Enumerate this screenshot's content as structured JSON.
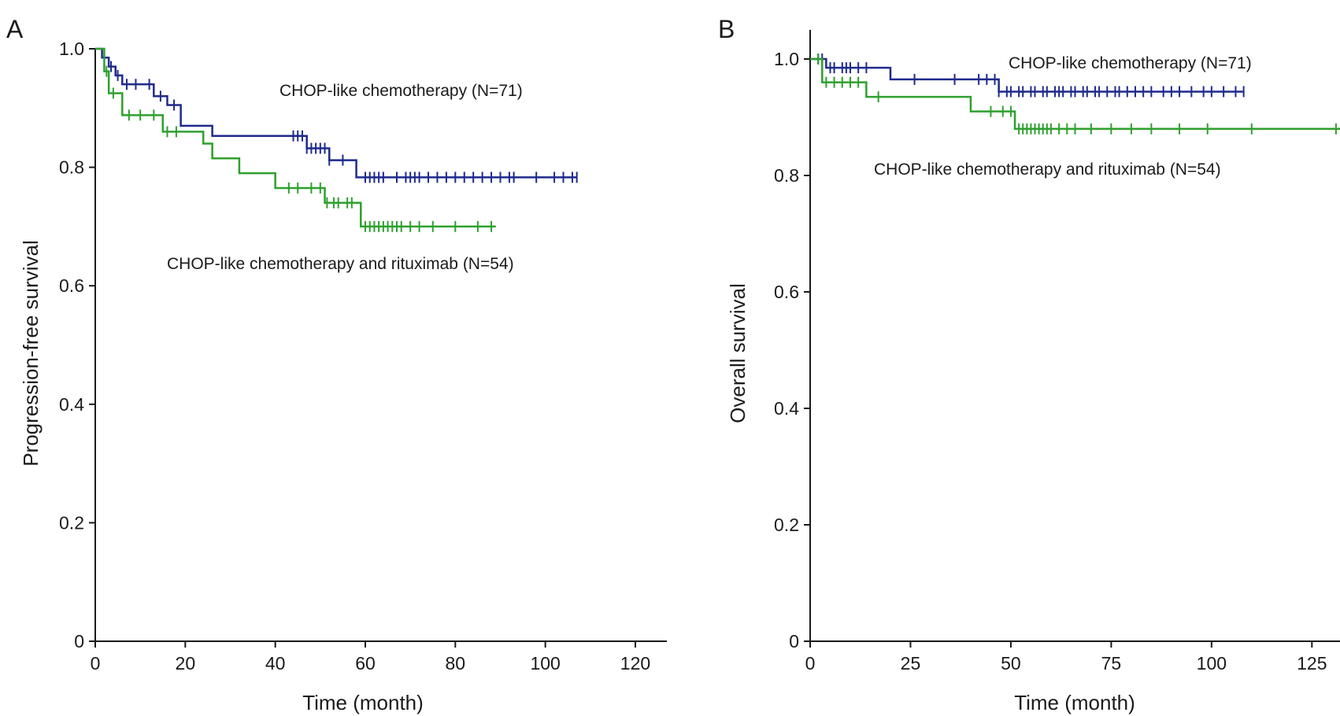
{
  "chart_data": [
    {
      "type": "line",
      "panel_label": "A",
      "xlabel": "Time (month)",
      "ylabel": "Progression-free survival",
      "xlim": [
        0,
        127
      ],
      "ylim": [
        0,
        1.0
      ],
      "xticks": [
        0,
        20,
        40,
        60,
        80,
        100,
        120
      ],
      "yticks": [
        0,
        0.2,
        0.4,
        0.6,
        0.8,
        1.0
      ],
      "ytick_labels": [
        "0",
        "0.2",
        "0.4",
        "0.6",
        "0.8",
        "1.0"
      ],
      "step": true,
      "series": [
        {
          "name": "CHOP-like chemotherapy (N=71)",
          "color": "#1f2a8c",
          "steps": [
            [
              0,
              1.0
            ],
            [
              1.5,
              0.985
            ],
            [
              3,
              0.97
            ],
            [
              4.5,
              0.955
            ],
            [
              6,
              0.94
            ],
            [
              11,
              0.94
            ],
            [
              13,
              0.92
            ],
            [
              16,
              0.905
            ],
            [
              19,
              0.87
            ],
            [
              26,
              0.853
            ],
            [
              47,
              0.832
            ],
            [
              52,
              0.812
            ],
            [
              58,
              0.783
            ],
            [
              107,
              0.783
            ]
          ],
          "censored": [
            2,
            3.5,
            5,
            7,
            9,
            12,
            14.5,
            17.5,
            44,
            45,
            46,
            47,
            48,
            49,
            50,
            51,
            52,
            55,
            60,
            61,
            62,
            63,
            64,
            67,
            69,
            70,
            71,
            72,
            74,
            76,
            78,
            80,
            82,
            84,
            86,
            88,
            90,
            92,
            93,
            98,
            102,
            104,
            106,
            107
          ]
        },
        {
          "name": "CHOP-like chemotherapy and rituximab (N=54)",
          "color": "#2ea02e",
          "steps": [
            [
              0,
              1.0
            ],
            [
              2,
              0.962
            ],
            [
              3,
              0.925
            ],
            [
              6,
              0.888
            ],
            [
              15,
              0.86
            ],
            [
              24,
              0.84
            ],
            [
              26,
              0.815
            ],
            [
              32,
              0.79
            ],
            [
              40,
              0.765
            ],
            [
              51,
              0.74
            ],
            [
              59,
              0.7
            ],
            [
              89,
              0.7
            ]
          ],
          "censored": [
            2.5,
            4,
            7.5,
            10,
            13,
            16,
            18,
            43,
            45,
            48,
            50,
            51.5,
            53,
            54,
            56,
            57,
            60,
            61,
            62,
            63,
            64,
            65,
            66,
            67,
            68,
            70,
            72,
            75,
            80,
            85,
            88
          ]
        }
      ]
    },
    {
      "type": "line",
      "panel_label": "B",
      "xlabel": "Time (month)",
      "ylabel": "Overall survival",
      "xlim": [
        0,
        132
      ],
      "ylim": [
        0,
        1.05
      ],
      "xticks": [
        0,
        25,
        50,
        75,
        100,
        125
      ],
      "yticks": [
        0,
        0.2,
        0.4,
        0.6,
        0.8,
        1.0
      ],
      "ytick_labels": [
        "0",
        "0.2",
        "0.4",
        "0.6",
        "0.8",
        "1.0"
      ],
      "step": true,
      "series": [
        {
          "name": "CHOP-like chemotherapy (N=71)",
          "color": "#1f2a8c",
          "steps": [
            [
              0,
              1.0
            ],
            [
              4,
              0.985
            ],
            [
              20,
              0.965
            ],
            [
              47,
              0.944
            ],
            [
              108,
              0.944
            ]
          ],
          "censored": [
            2,
            3,
            5,
            6,
            8,
            9,
            10,
            12,
            14,
            26,
            36,
            42,
            44,
            46,
            47,
            49,
            50,
            52,
            53,
            55,
            56,
            58,
            59,
            61,
            62,
            63,
            65,
            66,
            68,
            69,
            71,
            72,
            74,
            76,
            77,
            79,
            81,
            83,
            85,
            88,
            90,
            92,
            95,
            98,
            100,
            103,
            106,
            108
          ]
        },
        {
          "name": "CHOP-like chemotherapy and rituximab (N=54)",
          "color": "#2ea02e",
          "steps": [
            [
              0,
              1.0
            ],
            [
              3,
              0.96
            ],
            [
              14,
              0.935
            ],
            [
              40,
              0.91
            ],
            [
              51,
              0.88
            ],
            [
              132,
              0.88
            ]
          ],
          "censored": [
            2,
            4,
            6,
            8,
            10,
            12,
            17,
            45,
            48,
            50,
            52,
            53,
            54,
            55,
            56,
            57,
            58,
            59,
            60,
            62,
            64,
            66,
            70,
            75,
            80,
            85,
            92,
            99,
            110,
            131
          ]
        }
      ]
    }
  ]
}
